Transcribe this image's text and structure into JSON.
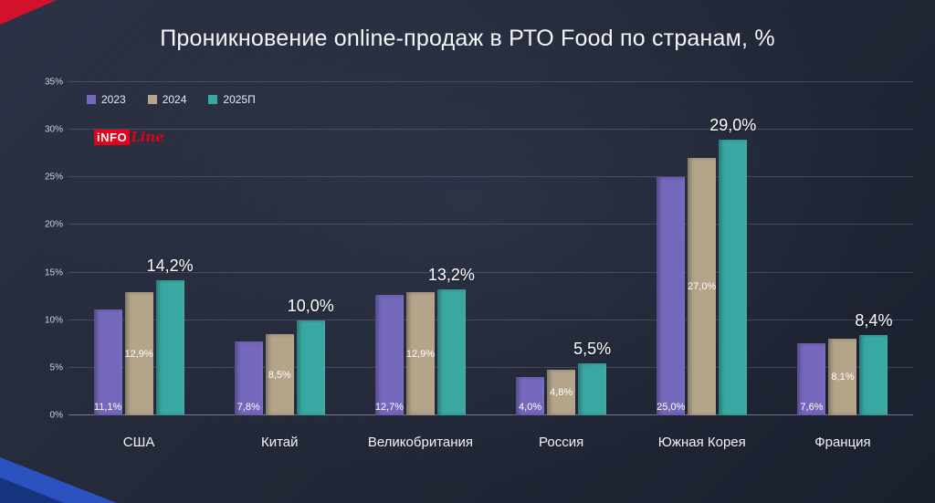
{
  "title": "Проникновение online-продаж в РТО Food по странам, %",
  "logo": {
    "info": "iNFO",
    "line": "Line"
  },
  "colors": {
    "background": "#232938",
    "accent_red": "#d2112b",
    "accent_blue": "#2a53c0",
    "series_2023": "#7468bd",
    "series_2024": "#b3a48a",
    "series_2025": "#3aa8a2",
    "gridline": "rgba(165,130,185,0.30)"
  },
  "chart_data": {
    "type": "bar",
    "title": "Проникновение online-продаж в РТО Food по странам, %",
    "categories": [
      "США",
      "Китай",
      "Великобритания",
      "Россия",
      "Южная Корея",
      "Франция"
    ],
    "series": [
      {
        "name": "2023",
        "color": "#7468bd",
        "values": [
          11.1,
          7.8,
          12.7,
          4.0,
          25.0,
          7.6
        ],
        "labels": [
          "11,1%",
          "7,8%",
          "12,7%",
          "4,0%",
          "25,0%",
          "7,6%"
        ],
        "label_position": "inside-bottom"
      },
      {
        "name": "2024",
        "color": "#b3a48a",
        "values": [
          12.9,
          8.5,
          12.9,
          4.8,
          27.0,
          8.1
        ],
        "labels": [
          "12,9%",
          "8,5%",
          "12,9%",
          "4,8%",
          "27,0%",
          "8,1%"
        ],
        "label_position": "inside-middle"
      },
      {
        "name": "2025П",
        "color": "#3aa8a2",
        "values": [
          14.2,
          10.0,
          13.2,
          5.5,
          29.0,
          8.4
        ],
        "labels": [
          "14,2%",
          "10,0%",
          "13,2%",
          "5,5%",
          "29,0%",
          "8,4%"
        ],
        "label_position": "above"
      }
    ],
    "xlabel": "",
    "ylabel": "",
    "ylim": [
      0,
      35
    ],
    "ytick_step": 5,
    "yticks": [
      "0%",
      "5%",
      "10%",
      "15%",
      "20%",
      "25%",
      "30%",
      "35%"
    ],
    "grid": true,
    "legend_position": "top-left"
  }
}
